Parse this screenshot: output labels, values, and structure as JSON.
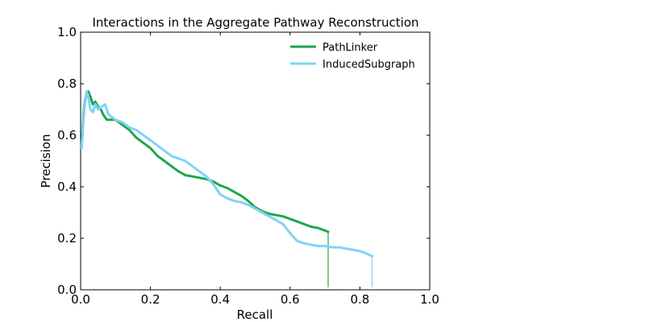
{
  "chart_data": {
    "type": "line",
    "title": "Interactions in the Aggregate Pathway Reconstruction",
    "xlabel": "Recall",
    "ylabel": "Precision",
    "xlim": [
      0.0,
      1.0
    ],
    "ylim": [
      0.0,
      1.0
    ],
    "xticks": [
      "0.0",
      "0.2",
      "0.4",
      "0.6",
      "0.8",
      "1.0"
    ],
    "yticks": [
      "0.0",
      "0.2",
      "0.4",
      "0.6",
      "0.8",
      "1.0"
    ],
    "grid": false,
    "legend_position": "top-right",
    "series": [
      {
        "name": "PathLinker",
        "color": "#1fa64a",
        "x": [
          0.003,
          0.008,
          0.012,
          0.017,
          0.022,
          0.028,
          0.035,
          0.042,
          0.05,
          0.058,
          0.065,
          0.075,
          0.085,
          0.1,
          0.12,
          0.14,
          0.16,
          0.18,
          0.2,
          0.22,
          0.24,
          0.26,
          0.28,
          0.3,
          0.32,
          0.34,
          0.36,
          0.38,
          0.4,
          0.42,
          0.44,
          0.46,
          0.48,
          0.5,
          0.52,
          0.54,
          0.56,
          0.58,
          0.6,
          0.62,
          0.64,
          0.66,
          0.68,
          0.7,
          0.709,
          0.709
        ],
        "y": [
          0.56,
          0.68,
          0.73,
          0.76,
          0.77,
          0.75,
          0.72,
          0.73,
          0.71,
          0.7,
          0.68,
          0.66,
          0.66,
          0.66,
          0.64,
          0.62,
          0.59,
          0.57,
          0.55,
          0.52,
          0.5,
          0.48,
          0.46,
          0.445,
          0.44,
          0.435,
          0.43,
          0.42,
          0.405,
          0.395,
          0.38,
          0.365,
          0.345,
          0.32,
          0.305,
          0.295,
          0.29,
          0.285,
          0.275,
          0.265,
          0.255,
          0.245,
          0.24,
          0.23,
          0.225,
          0.01
        ]
      },
      {
        "name": "InducedSubgraph",
        "color": "#7fd3f7",
        "x": [
          0.003,
          0.008,
          0.012,
          0.017,
          0.022,
          0.028,
          0.035,
          0.042,
          0.05,
          0.06,
          0.07,
          0.08,
          0.09,
          0.1,
          0.12,
          0.14,
          0.16,
          0.18,
          0.2,
          0.22,
          0.24,
          0.26,
          0.28,
          0.3,
          0.32,
          0.34,
          0.36,
          0.38,
          0.4,
          0.42,
          0.44,
          0.46,
          0.48,
          0.5,
          0.52,
          0.54,
          0.56,
          0.58,
          0.6,
          0.62,
          0.64,
          0.66,
          0.68,
          0.7,
          0.72,
          0.74,
          0.76,
          0.78,
          0.8,
          0.82,
          0.835,
          0.835
        ],
        "y": [
          0.55,
          0.66,
          0.72,
          0.77,
          0.75,
          0.7,
          0.69,
          0.72,
          0.7,
          0.71,
          0.72,
          0.68,
          0.67,
          0.66,
          0.65,
          0.63,
          0.62,
          0.6,
          0.58,
          0.56,
          0.54,
          0.52,
          0.51,
          0.5,
          0.48,
          0.46,
          0.44,
          0.41,
          0.37,
          0.355,
          0.345,
          0.34,
          0.33,
          0.315,
          0.3,
          0.285,
          0.27,
          0.255,
          0.22,
          0.19,
          0.18,
          0.175,
          0.17,
          0.17,
          0.165,
          0.165,
          0.16,
          0.155,
          0.15,
          0.14,
          0.13,
          0.01
        ]
      }
    ]
  }
}
